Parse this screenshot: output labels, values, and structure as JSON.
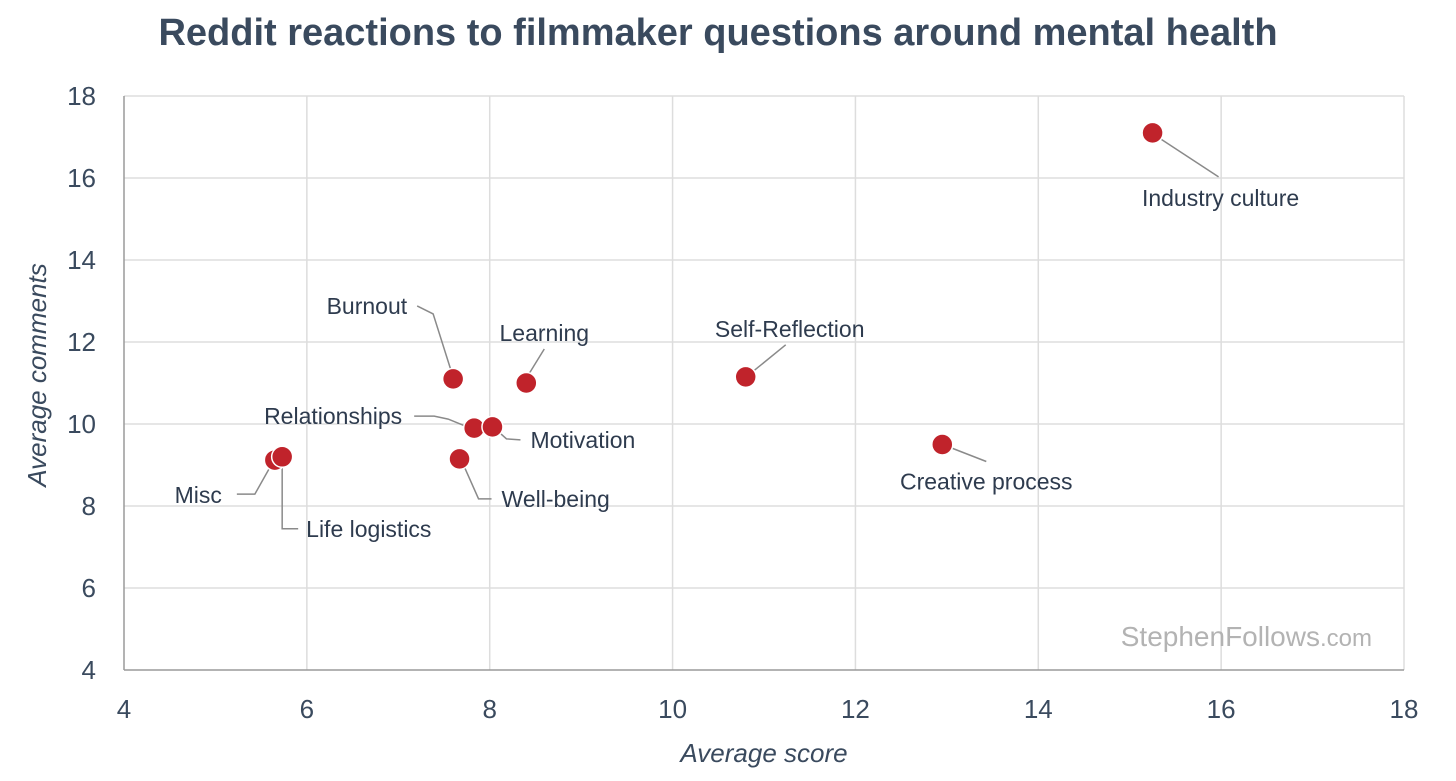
{
  "title": "Reddit reactions to filmmaker questions around mental health",
  "watermark": {
    "main": "StephenFollows",
    "suffix": ".com"
  },
  "colors": {
    "point": "#c0232b",
    "grid": "#dddddd",
    "axis": "#9a9a9a",
    "leader": "#8a8a8a",
    "text": "#3a4a5e"
  },
  "chart_data": {
    "type": "scatter",
    "title": "Reddit reactions to filmmaker questions around mental health",
    "xlabel": "Average score",
    "ylabel": "Average comments",
    "xlim": [
      4,
      18
    ],
    "ylim": [
      4,
      18
    ],
    "xticks": [
      4,
      6,
      8,
      10,
      12,
      14,
      16,
      18
    ],
    "yticks": [
      4,
      6,
      8,
      10,
      12,
      14,
      16,
      18
    ],
    "grid": true,
    "legend": "none",
    "points": [
      {
        "label": "Industry culture",
        "x": 15.25,
        "y": 17.1
      },
      {
        "label": "Burnout",
        "x": 7.6,
        "y": 11.1
      },
      {
        "label": "Learning",
        "x": 8.4,
        "y": 11.0
      },
      {
        "label": "Self-Reflection",
        "x": 10.8,
        "y": 11.15
      },
      {
        "label": "Relationships",
        "x": 7.83,
        "y": 9.9
      },
      {
        "label": "Motivation",
        "x": 8.03,
        "y": 9.93
      },
      {
        "label": "Creative process",
        "x": 12.95,
        "y": 9.5
      },
      {
        "label": "Well-being",
        "x": 7.67,
        "y": 9.15
      },
      {
        "label": "Misc",
        "x": 5.65,
        "y": 9.12
      },
      {
        "label": "Life logistics",
        "x": 5.73,
        "y": 9.2
      }
    ]
  }
}
